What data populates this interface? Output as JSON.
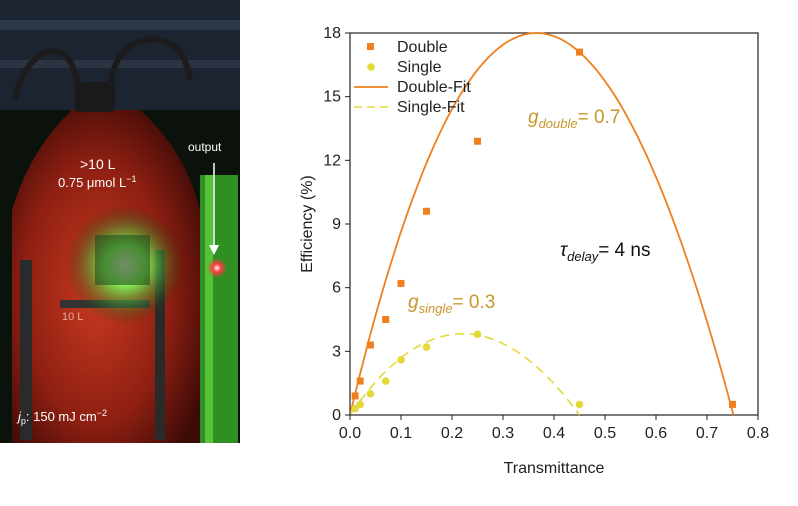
{
  "photo": {
    "volume_label": ">10 L",
    "conc_label": "0.75 μmol L",
    "conc_exp": "−1",
    "output_label": "output",
    "bottle_marking": "10 L",
    "pump_prefix_j": "j",
    "pump_prefix_sub": "p",
    "pump_value": ": 150 mJ cm",
    "pump_exp": "−2"
  },
  "chart_data": {
    "type": "scatter",
    "xlabel": "Transmittance",
    "ylabel": "Efficiency (%)",
    "xlim": [
      0,
      0.8
    ],
    "ylim": [
      0,
      18
    ],
    "xticks": [
      "0.0",
      "0.1",
      "0.2",
      "0.3",
      "0.4",
      "0.5",
      "0.6",
      "0.7",
      "0.8"
    ],
    "yticks": [
      "0",
      "3",
      "6",
      "9",
      "12",
      "15",
      "18"
    ],
    "legend_position": "top-left",
    "colors": {
      "double": "#f07f1e",
      "single": "#e3d93a",
      "annotation": "#c8962b"
    },
    "series": [
      {
        "name": "Double",
        "marker": "square",
        "x": [
          0.01,
          0.02,
          0.04,
          0.07,
          0.1,
          0.15,
          0.25,
          0.45,
          0.75
        ],
        "y": [
          0.9,
          1.6,
          3.3,
          4.5,
          6.2,
          9.6,
          12.9,
          17.1,
          0.5
        ]
      },
      {
        "name": "Single",
        "marker": "circle",
        "x": [
          0.01,
          0.02,
          0.04,
          0.07,
          0.1,
          0.15,
          0.25,
          0.45
        ],
        "y": [
          0.3,
          0.5,
          1.0,
          1.6,
          2.6,
          3.2,
          3.8,
          0.5
        ]
      }
    ],
    "fits": [
      {
        "name": "Double-Fit",
        "style": "solid",
        "g": 0.7
      },
      {
        "name": "Single-Fit",
        "style": "dashed",
        "g": 0.3
      }
    ],
    "annotations": {
      "g_double_var": "g",
      "g_double_sub": "double",
      "g_double_val": "= 0.7",
      "g_single_var": "g",
      "g_single_sub": "single",
      "g_single_val": "= 0.3",
      "tau_var": "τ",
      "tau_sub": "delay",
      "tau_val": "= 4 ns"
    }
  }
}
